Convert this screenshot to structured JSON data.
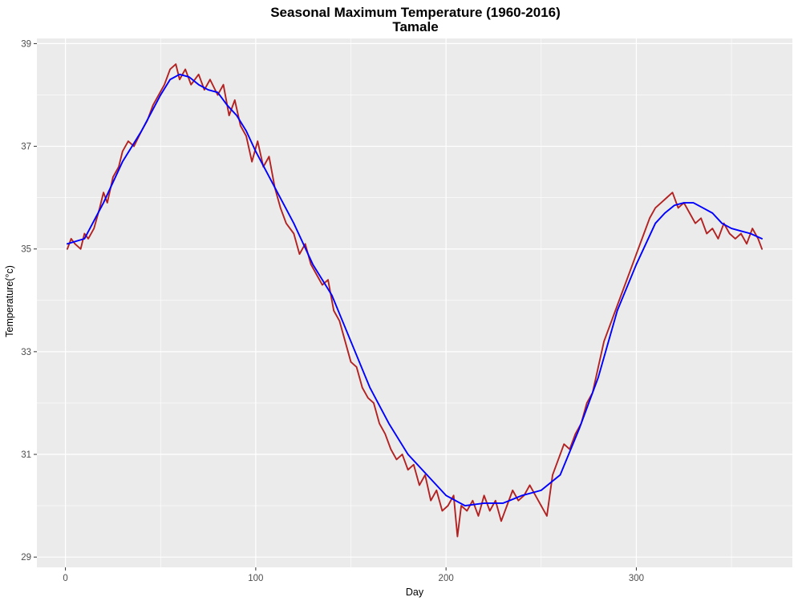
{
  "chart_data": {
    "type": "line",
    "title": "Seasonal Maximum Temperature (1960-2016)",
    "subtitle": "Tamale",
    "xlabel": "Day",
    "ylabel": "Temperature(°c)",
    "xlim": [
      -15,
      382
    ],
    "ylim": [
      28.8,
      39.1
    ],
    "x_ticks": [
      0,
      100,
      200,
      300
    ],
    "x_tick_labels": [
      "0",
      "100",
      "200",
      "300"
    ],
    "y_ticks": [
      29,
      31,
      33,
      35,
      37,
      39
    ],
    "y_tick_labels": [
      "29",
      "31",
      "33",
      "35",
      "37",
      "39"
    ],
    "grid": true,
    "legend": "none",
    "series": [
      {
        "color": "#b22222",
        "x": [
          1,
          3,
          5,
          8,
          10,
          12,
          15,
          18,
          20,
          22,
          25,
          28,
          30,
          33,
          36,
          40,
          43,
          46,
          49,
          52,
          55,
          58,
          60,
          63,
          66,
          70,
          73,
          76,
          80,
          83,
          86,
          89,
          92,
          95,
          98,
          101,
          104,
          107,
          110,
          113,
          116,
          120,
          123,
          126,
          129,
          132,
          135,
          138,
          141,
          144,
          147,
          150,
          153,
          156,
          159,
          162,
          165,
          168,
          171,
          174,
          177,
          180,
          183,
          186,
          189,
          192,
          195,
          198,
          201,
          204,
          206,
          208,
          211,
          214,
          217,
          220,
          223,
          226,
          229,
          232,
          235,
          238,
          241,
          244,
          247,
          250,
          253,
          256,
          259,
          262,
          265,
          268,
          271,
          274,
          277,
          280,
          283,
          286,
          289,
          292,
          295,
          298,
          301,
          304,
          307,
          310,
          313,
          316,
          319,
          322,
          325,
          328,
          331,
          334,
          337,
          340,
          343,
          346,
          349,
          352,
          355,
          358,
          361,
          364,
          366
        ],
        "y": [
          35.0,
          35.2,
          35.1,
          35.0,
          35.3,
          35.2,
          35.4,
          35.8,
          36.1,
          35.9,
          36.4,
          36.6,
          36.9,
          37.1,
          37.0,
          37.3,
          37.5,
          37.8,
          38.0,
          38.2,
          38.5,
          38.6,
          38.3,
          38.5,
          38.2,
          38.4,
          38.1,
          38.3,
          38.0,
          38.2,
          37.6,
          37.9,
          37.4,
          37.2,
          36.7,
          37.1,
          36.6,
          36.8,
          36.2,
          35.8,
          35.5,
          35.3,
          34.9,
          35.1,
          34.7,
          34.5,
          34.3,
          34.4,
          33.8,
          33.6,
          33.2,
          32.8,
          32.7,
          32.3,
          32.1,
          32.0,
          31.6,
          31.4,
          31.1,
          30.9,
          31.0,
          30.7,
          30.8,
          30.4,
          30.6,
          30.1,
          30.3,
          29.9,
          30.0,
          30.2,
          29.4,
          30.0,
          29.9,
          30.1,
          29.8,
          30.2,
          29.9,
          30.1,
          29.7,
          30.0,
          30.3,
          30.1,
          30.2,
          30.4,
          30.2,
          30.0,
          29.8,
          30.6,
          30.9,
          31.2,
          31.1,
          31.4,
          31.6,
          32.0,
          32.2,
          32.7,
          33.2,
          33.5,
          33.8,
          34.1,
          34.4,
          34.7,
          35.0,
          35.3,
          35.6,
          35.8,
          35.9,
          36.0,
          36.1,
          35.8,
          35.9,
          35.7,
          35.5,
          35.6,
          35.3,
          35.4,
          35.2,
          35.5,
          35.3,
          35.2,
          35.3,
          35.1,
          35.4,
          35.2,
          35.0
        ]
      },
      {
        "color": "#0000ff",
        "x": [
          1,
          10,
          20,
          30,
          40,
          50,
          55,
          60,
          65,
          70,
          75,
          80,
          85,
          90,
          95,
          100,
          110,
          120,
          130,
          140,
          150,
          160,
          170,
          180,
          190,
          200,
          210,
          220,
          230,
          240,
          250,
          255,
          260,
          270,
          280,
          290,
          300,
          310,
          315,
          320,
          325,
          330,
          335,
          340,
          345,
          350,
          355,
          360,
          366
        ],
        "y": [
          35.1,
          35.2,
          35.9,
          36.7,
          37.3,
          38.0,
          38.3,
          38.4,
          38.35,
          38.2,
          38.1,
          38.05,
          37.8,
          37.6,
          37.3,
          36.9,
          36.2,
          35.5,
          34.7,
          34.1,
          33.2,
          32.3,
          31.6,
          31.0,
          30.6,
          30.2,
          30.0,
          30.05,
          30.05,
          30.2,
          30.3,
          30.45,
          30.6,
          31.5,
          32.5,
          33.8,
          34.7,
          35.5,
          35.7,
          35.85,
          35.9,
          35.9,
          35.8,
          35.7,
          35.5,
          35.4,
          35.35,
          35.3,
          35.2
        ]
      }
    ]
  }
}
